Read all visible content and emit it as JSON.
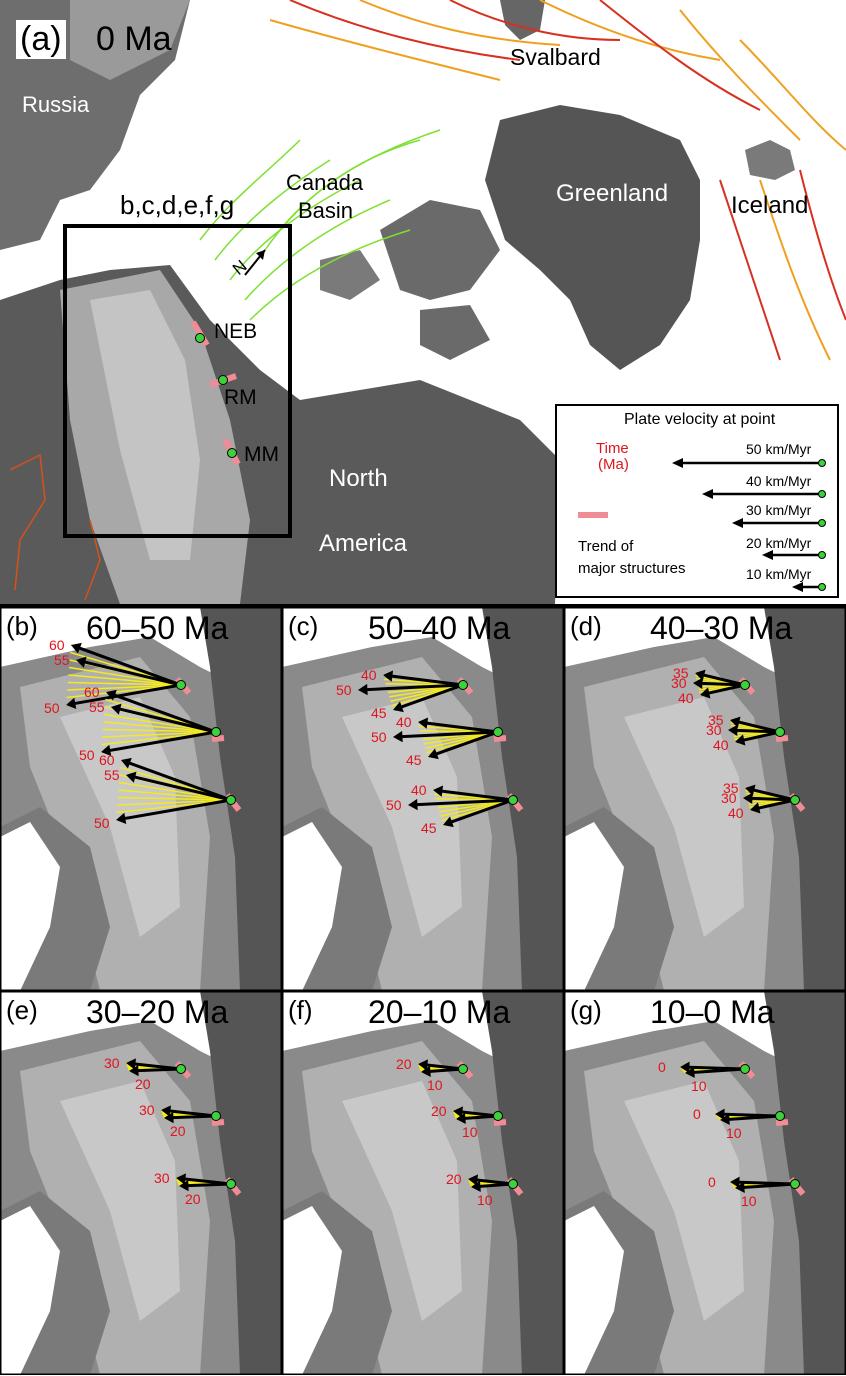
{
  "panel_a": {
    "letter": "(a)",
    "age": "0 Ma",
    "places": {
      "russia": "Russia",
      "svalbard": "Svalbard",
      "canada_basin_1": "Canada",
      "canada_basin_2": "Basin",
      "greenland": "Greenland",
      "iceland": "Iceland",
      "north_america_1": "North",
      "north_america_2": "America"
    },
    "inset_label": "b,c,d,e,f,g",
    "north_label": "N",
    "points": {
      "neb": "NEB",
      "rm": "RM",
      "mm": "MM"
    }
  },
  "legend": {
    "title": "Plate velocity at point",
    "time_1": "Time",
    "time_2": "(Ma)",
    "speeds": [
      "50 km/Myr",
      "40 km/Myr",
      "30 km/Myr",
      "20 km/Myr",
      "10 km/Myr"
    ],
    "speed_values": [
      50,
      40,
      30,
      20,
      10
    ],
    "trend_1": "Trend of",
    "trend_2": "major structures"
  },
  "panels": [
    {
      "id": "b",
      "letter": "(b)",
      "age": "60–50 Ma",
      "groups": [
        {
          "labels": [
            "60",
            "55",
            "50"
          ]
        },
        {
          "labels": [
            "60",
            "55",
            "50"
          ]
        },
        {
          "labels": [
            "60",
            "55",
            "50"
          ]
        }
      ]
    },
    {
      "id": "c",
      "letter": "(c)",
      "age": "50–40 Ma",
      "groups": [
        {
          "labels": [
            "40",
            "50",
            "45"
          ]
        },
        {
          "labels": [
            "40",
            "50",
            "45"
          ]
        },
        {
          "labels": [
            "40",
            "50",
            "45"
          ]
        }
      ]
    },
    {
      "id": "d",
      "letter": "(d)",
      "age": "40–30 Ma",
      "groups": [
        {
          "labels": [
            "35",
            "30",
            "40"
          ]
        },
        {
          "labels": [
            "35",
            "30",
            "40"
          ]
        },
        {
          "labels": [
            "35",
            "30",
            "40"
          ]
        }
      ]
    },
    {
      "id": "e",
      "letter": "(e)",
      "age": "30–20 Ma",
      "groups": [
        {
          "labels": [
            "30",
            "20"
          ]
        },
        {
          "labels": [
            "30",
            "20"
          ]
        },
        {
          "labels": [
            "30",
            "20"
          ]
        }
      ]
    },
    {
      "id": "f",
      "letter": "(f)",
      "age": "20–10 Ma",
      "groups": [
        {
          "labels": [
            "20",
            "10"
          ]
        },
        {
          "labels": [
            "20",
            "10"
          ]
        },
        {
          "labels": [
            "20",
            "10"
          ]
        }
      ]
    },
    {
      "id": "g",
      "letter": "(g)",
      "age": "10–0 Ma",
      "groups": [
        {
          "labels": [
            "0",
            "10"
          ]
        },
        {
          "labels": [
            "0",
            "10"
          ]
        },
        {
          "labels": [
            "0",
            "10"
          ]
        }
      ]
    }
  ],
  "colors": {
    "ocean": "#ffffff",
    "land_dark": "#5a5a5a",
    "land_mid": "#8c8c8c",
    "land_light": "#b4b4b4",
    "label_red": "#e0141e",
    "arrow_yellow": "#f5ea1e",
    "point_green": "#3cd23c",
    "trend_pink": "#f08c96",
    "isochron_red": "#d83020",
    "isochron_orange": "#f0a020",
    "isochron_green": "#7ee030"
  }
}
